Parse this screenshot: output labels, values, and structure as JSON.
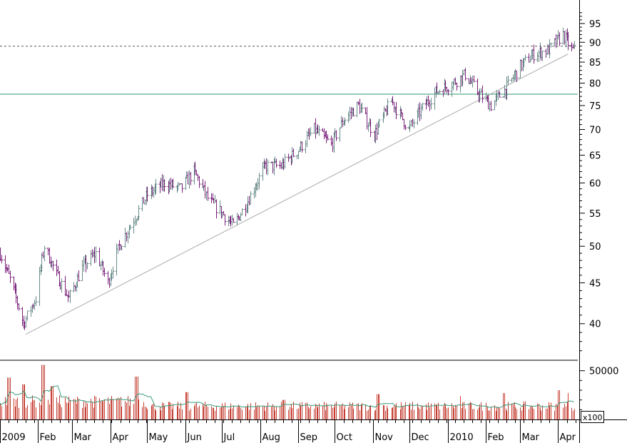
{
  "chart_data": [
    {
      "type": "bar",
      "subtype": "ohlc-price",
      "y_scale": "log",
      "ylim": [
        36,
        100
      ],
      "y_ticks": [
        40,
        45,
        50,
        55,
        60,
        65,
        70,
        75,
        80,
        85,
        90,
        95
      ],
      "x_labels": [
        "2009",
        "Feb",
        "Mar",
        "Apr",
        "May",
        "Jun",
        "Jul",
        "Aug",
        "Sep",
        "Oct",
        "Nov",
        "Dec",
        "2010",
        "Feb",
        "Mar",
        "Apr"
      ],
      "horizontal_lines": [
        {
          "value": 89.0,
          "style": "dashed",
          "color": "#555555"
        },
        {
          "value": 77.5,
          "style": "solid",
          "color": "#2e9a6e"
        }
      ],
      "trendline": {
        "from": [
          "2009-01-22",
          38.8
        ],
        "to": [
          "2010-04-09",
          87.0
        ],
        "color": "#aaaaaa"
      },
      "price_path": [
        [
          "2009-01-01",
          49
        ],
        [
          "2009-01-10",
          45
        ],
        [
          "2009-01-20",
          40
        ],
        [
          "2009-01-30",
          43
        ],
        [
          "2009-02-06",
          50
        ],
        [
          "2009-02-16",
          46
        ],
        [
          "2009-02-26",
          43
        ],
        [
          "2009-03-09",
          47
        ],
        [
          "2009-03-20",
          49
        ],
        [
          "2009-03-30",
          45
        ],
        [
          "2009-04-08",
          50
        ],
        [
          "2009-04-20",
          54
        ],
        [
          "2009-05-01",
          58
        ],
        [
          "2009-05-15",
          60
        ],
        [
          "2009-05-28",
          59
        ],
        [
          "2009-06-08",
          62
        ],
        [
          "2009-06-20",
          57
        ],
        [
          "2009-07-01",
          55
        ],
        [
          "2009-07-10",
          53
        ],
        [
          "2009-07-22",
          57
        ],
        [
          "2009-08-05",
          63
        ],
        [
          "2009-08-18",
          63
        ],
        [
          "2009-09-01",
          66
        ],
        [
          "2009-09-14",
          70
        ],
        [
          "2009-09-28",
          67
        ],
        [
          "2009-10-08",
          72
        ],
        [
          "2009-10-20",
          75
        ],
        [
          "2009-11-02",
          69
        ],
        [
          "2009-11-16",
          76
        ],
        [
          "2009-11-30",
          70
        ],
        [
          "2009-12-10",
          74
        ],
        [
          "2009-12-22",
          78
        ],
        [
          "2010-01-05",
          80
        ],
        [
          "2010-01-15",
          82
        ],
        [
          "2010-01-25",
          78
        ],
        [
          "2010-02-05",
          75
        ],
        [
          "2010-02-18",
          79
        ],
        [
          "2010-03-01",
          84
        ],
        [
          "2010-03-12",
          87
        ],
        [
          "2010-03-24",
          88
        ],
        [
          "2010-04-05",
          92
        ],
        [
          "2010-04-12",
          88
        ]
      ]
    },
    {
      "type": "bar",
      "subtype": "volume",
      "ylim": [
        0,
        60000
      ],
      "y_ticks": [
        50000
      ],
      "unit_label": "x100",
      "moving_average": true,
      "typical_volume": 16000,
      "spikes": [
        [
          "2009-01-08",
          43000
        ],
        [
          "2009-01-20",
          36000
        ],
        [
          "2009-02-05",
          56000
        ],
        [
          "2009-02-12",
          34000
        ],
        [
          "2009-04-22",
          44000
        ],
        [
          "2009-06-02",
          28000
        ],
        [
          "2009-08-20",
          20000
        ],
        [
          "2009-11-05",
          26000
        ],
        [
          "2010-01-10",
          24000
        ],
        [
          "2010-02-15",
          27000
        ],
        [
          "2010-04-02",
          30000
        ],
        [
          "2010-04-10",
          27000
        ]
      ]
    }
  ]
}
